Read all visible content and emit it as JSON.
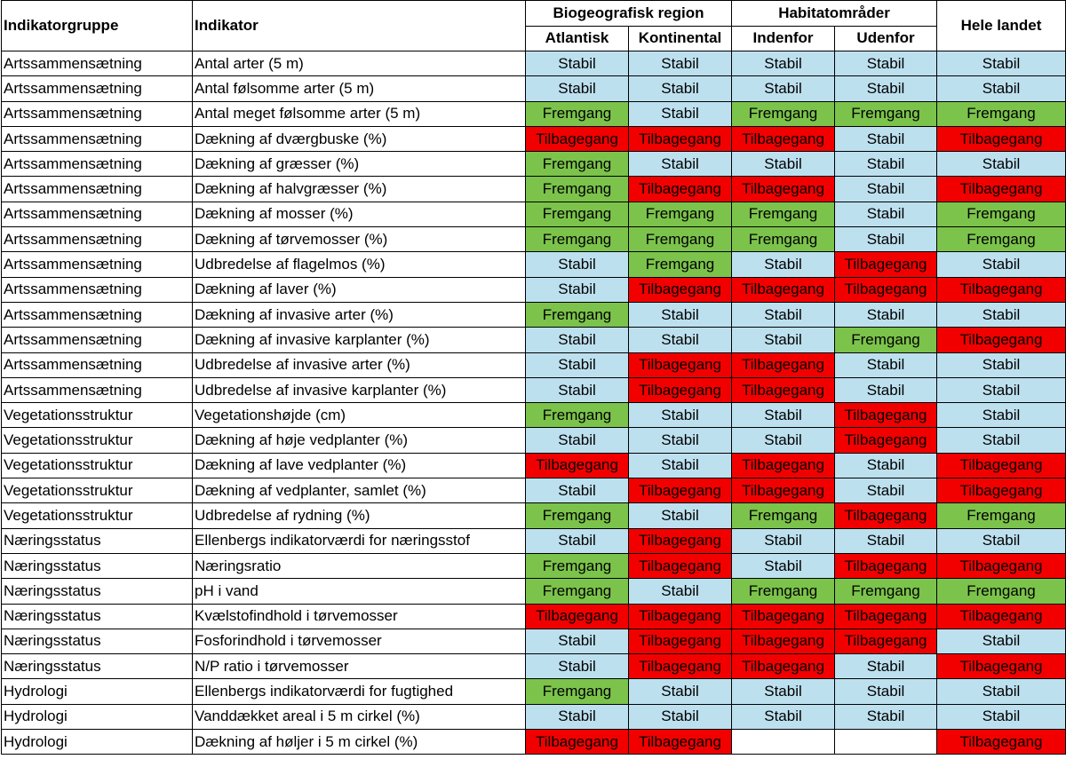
{
  "header": {
    "group": "Indikatorgruppe",
    "indicator": "Indikator",
    "bioregion": "Biogeografisk region",
    "habitat": "Habitatområder",
    "country": "Hele landet",
    "atlantic": "Atlantisk",
    "continental": "Kontinental",
    "inside": "Indenfor",
    "outside": "Udenfor"
  },
  "status_colors": {
    "Stabil": "#bde0ef",
    "Fremgang": "#7cc34b",
    "Tilbagegang": "#f20000"
  },
  "rows": [
    {
      "group": "Artssammensætning",
      "indicator": "Antal arter (5 m)",
      "values": [
        "Stabil",
        "Stabil",
        "Stabil",
        "Stabil",
        "Stabil"
      ]
    },
    {
      "group": "Artssammensætning",
      "indicator": "Antal følsomme arter (5 m)",
      "values": [
        "Stabil",
        "Stabil",
        "Stabil",
        "Stabil",
        "Stabil"
      ]
    },
    {
      "group": "Artssammensætning",
      "indicator": "Antal meget følsomme arter (5 m)",
      "values": [
        "Fremgang",
        "Stabil",
        "Fremgang",
        "Fremgang",
        "Fremgang"
      ]
    },
    {
      "group": "Artssammensætning",
      "indicator": "Dækning af dværgbuske (%)",
      "values": [
        "Tilbagegang",
        "Tilbagegang",
        "Tilbagegang",
        "Stabil",
        "Tilbagegang"
      ]
    },
    {
      "group": "Artssammensætning",
      "indicator": "Dækning af græsser (%)",
      "values": [
        "Fremgang",
        "Stabil",
        "Stabil",
        "Stabil",
        "Stabil"
      ]
    },
    {
      "group": "Artssammensætning",
      "indicator": "Dækning af halvgræsser (%)",
      "values": [
        "Fremgang",
        "Tilbagegang",
        "Tilbagegang",
        "Stabil",
        "Tilbagegang"
      ]
    },
    {
      "group": "Artssammensætning",
      "indicator": "Dækning af mosser (%)",
      "values": [
        "Fremgang",
        "Fremgang",
        "Fremgang",
        "Stabil",
        "Fremgang"
      ]
    },
    {
      "group": "Artssammensætning",
      "indicator": "Dækning af tørvemosser (%)",
      "values": [
        "Fremgang",
        "Fremgang",
        "Fremgang",
        "Stabil",
        "Fremgang"
      ]
    },
    {
      "group": "Artssammensætning",
      "indicator": "Udbredelse af flagelmos (%)",
      "values": [
        "Stabil",
        "Fremgang",
        "Stabil",
        "Tilbagegang",
        "Stabil"
      ]
    },
    {
      "group": "Artssammensætning",
      "indicator": "Dækning af laver (%)",
      "values": [
        "Stabil",
        "Tilbagegang",
        "Tilbagegang",
        "Tilbagegang",
        "Tilbagegang"
      ]
    },
    {
      "group": "Artssammensætning",
      "indicator": "Dækning af invasive arter (%)",
      "values": [
        "Fremgang",
        "Stabil",
        "Stabil",
        "Stabil",
        "Stabil"
      ]
    },
    {
      "group": "Artssammensætning",
      "indicator": "Dækning af invasive karplanter (%)",
      "values": [
        "Stabil",
        "Stabil",
        "Stabil",
        "Fremgang",
        "Tilbagegang"
      ]
    },
    {
      "group": "Artssammensætning",
      "indicator": "Udbredelse af invasive arter (%)",
      "values": [
        "Stabil",
        "Tilbagegang",
        "Tilbagegang",
        "Stabil",
        "Stabil"
      ]
    },
    {
      "group": "Artssammensætning",
      "indicator": "Udbredelse af invasive karplanter (%)",
      "values": [
        "Stabil",
        "Tilbagegang",
        "Tilbagegang",
        "Stabil",
        "Stabil"
      ]
    },
    {
      "group": "Vegetationsstruktur",
      "indicator": "Vegetationshøjde (cm)",
      "values": [
        "Fremgang",
        "Stabil",
        "Stabil",
        "Tilbagegang",
        "Stabil"
      ]
    },
    {
      "group": "Vegetationsstruktur",
      "indicator": "Dækning af høje vedplanter (%)",
      "values": [
        "Stabil",
        "Stabil",
        "Stabil",
        "Tilbagegang",
        "Stabil"
      ]
    },
    {
      "group": "Vegetationsstruktur",
      "indicator": "Dækning af lave vedplanter (%)",
      "values": [
        "Tilbagegang",
        "Stabil",
        "Tilbagegang",
        "Stabil",
        "Tilbagegang"
      ]
    },
    {
      "group": "Vegetationsstruktur",
      "indicator": "Dækning af vedplanter, samlet (%)",
      "values": [
        "Stabil",
        "Tilbagegang",
        "Tilbagegang",
        "Stabil",
        "Tilbagegang"
      ]
    },
    {
      "group": "Vegetationsstruktur",
      "indicator": "Udbredelse af rydning (%)",
      "values": [
        "Fremgang",
        "Stabil",
        "Fremgang",
        "Tilbagegang",
        "Fremgang"
      ]
    },
    {
      "group": "Næringsstatus",
      "indicator": "Ellenbergs indikatorværdi for næringsstof",
      "values": [
        "Stabil",
        "Tilbagegang",
        "Stabil",
        "Stabil",
        "Stabil"
      ]
    },
    {
      "group": "Næringsstatus",
      "indicator": "Næringsratio",
      "values": [
        "Fremgang",
        "Tilbagegang",
        "Stabil",
        "Tilbagegang",
        "Tilbagegang"
      ]
    },
    {
      "group": "Næringsstatus",
      "indicator": "pH i vand",
      "values": [
        "Fremgang",
        "Stabil",
        "Fremgang",
        "Fremgang",
        "Fremgang"
      ]
    },
    {
      "group": "Næringsstatus",
      "indicator": "Kvælstofindhold i tørvemosser",
      "values": [
        "Tilbagegang",
        "Tilbagegang",
        "Tilbagegang",
        "Tilbagegang",
        "Tilbagegang"
      ]
    },
    {
      "group": "Næringsstatus",
      "indicator": "Fosforindhold i tørvemosser",
      "values": [
        "Stabil",
        "Tilbagegang",
        "Tilbagegang",
        "Tilbagegang",
        "Stabil"
      ]
    },
    {
      "group": "Næringsstatus",
      "indicator": "N/P ratio i tørvemosser",
      "values": [
        "Stabil",
        "Tilbagegang",
        "Tilbagegang",
        "Stabil",
        "Tilbagegang"
      ]
    },
    {
      "group": "Hydrologi",
      "indicator": "Ellenbergs indikatorværdi for fugtighed",
      "values": [
        "Fremgang",
        "Stabil",
        "Stabil",
        "Stabil",
        "Stabil"
      ]
    },
    {
      "group": "Hydrologi",
      "indicator": "Vanddækket areal i 5 m cirkel (%)",
      "values": [
        "Stabil",
        "Stabil",
        "Stabil",
        "Stabil",
        "Stabil"
      ]
    },
    {
      "group": "Hydrologi",
      "indicator": "Dækning af høljer i 5 m cirkel (%)",
      "values": [
        "Tilbagegang",
        "Tilbagegang",
        "",
        "",
        "Tilbagegang"
      ]
    }
  ]
}
